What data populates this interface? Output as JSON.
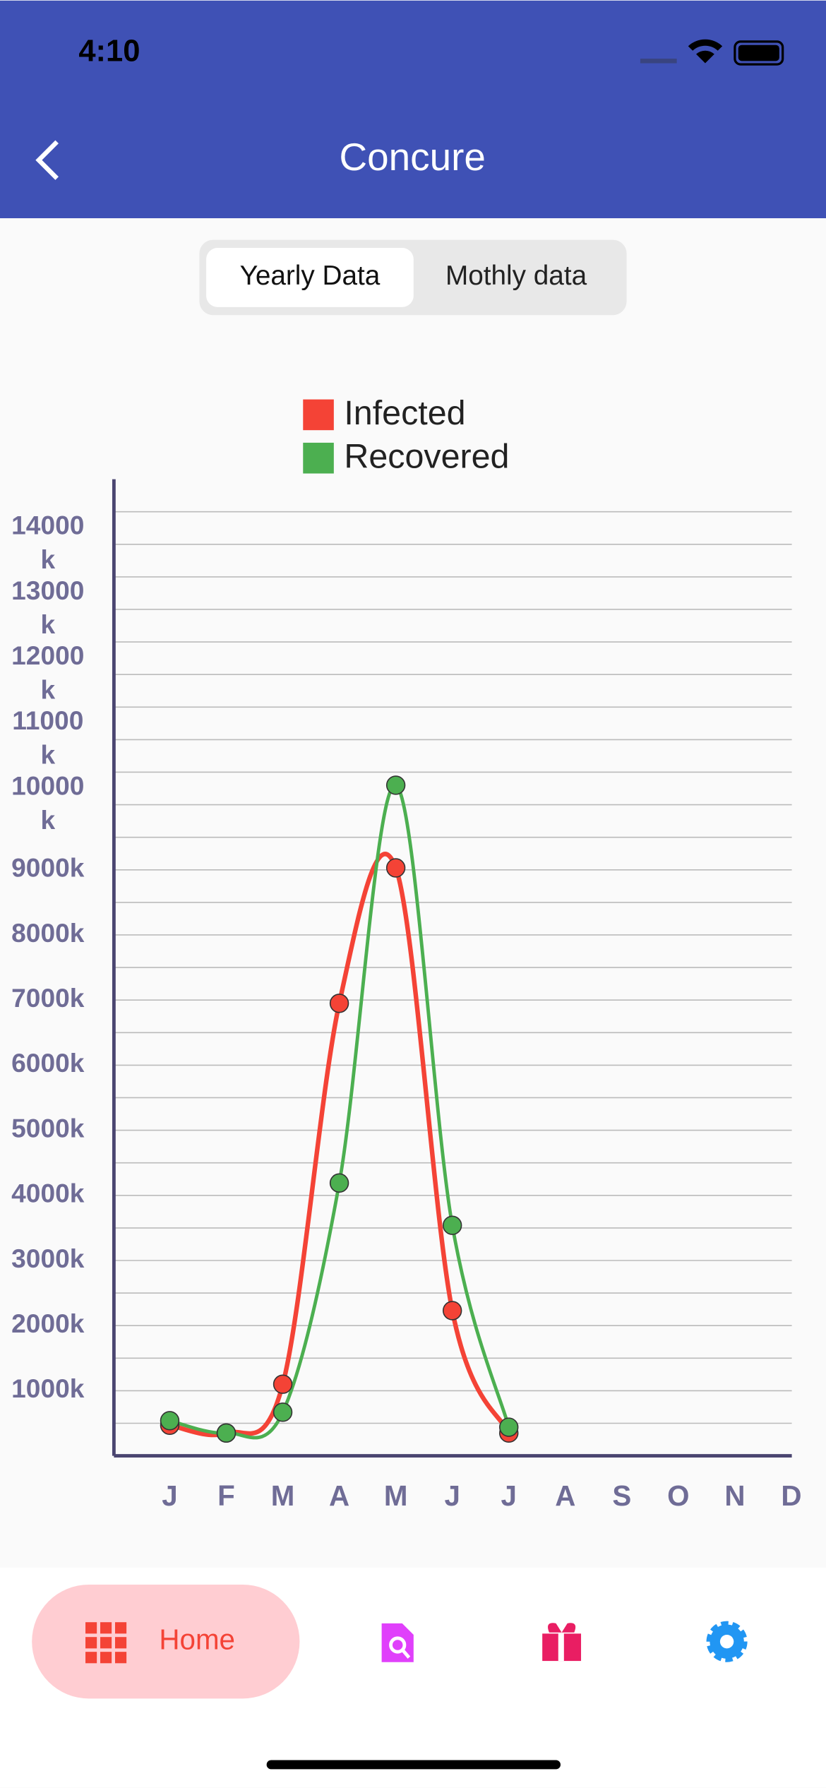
{
  "status_bar": {
    "time": "4:10"
  },
  "header": {
    "title": "Concure"
  },
  "tabs": [
    "Yearly Data",
    "Mothly data"
  ],
  "selected_tab": 0,
  "chart_data": {
    "type": "line",
    "categories": [
      "J",
      "F",
      "M",
      "A",
      "M",
      "J",
      "J",
      "A",
      "S",
      "O",
      "N",
      "D"
    ],
    "series": [
      {
        "name": "Infected",
        "color": "#f44336",
        "values": [
          470,
          350,
          1100,
          6950,
          9030,
          2230,
          350,
          null,
          null,
          null,
          null,
          null
        ]
      },
      {
        "name": "Recovered",
        "color": "#4caf50",
        "values": [
          540,
          350,
          670,
          4190,
          10300,
          3540,
          440,
          null,
          null,
          null,
          null,
          null
        ]
      }
    ],
    "ylim": [
      0,
      15000
    ],
    "yticks": [
      {
        "value": 1000,
        "label": "1000k"
      },
      {
        "value": 2000,
        "label": "2000k"
      },
      {
        "value": 3000,
        "label": "3000k"
      },
      {
        "value": 4000,
        "label": "4000k"
      },
      {
        "value": 5000,
        "label": "5000k"
      },
      {
        "value": 6000,
        "label": "6000k"
      },
      {
        "value": 7000,
        "label": "7000k"
      },
      {
        "value": 8000,
        "label": "8000k"
      },
      {
        "value": 9000,
        "label": "9000k"
      },
      {
        "value": 10000,
        "label": "10000k"
      },
      {
        "value": 11000,
        "label": "11000k"
      },
      {
        "value": 12000,
        "label": "12000k"
      },
      {
        "value": 13000,
        "label": "13000k"
      },
      {
        "value": 14000,
        "label": "14000k"
      }
    ],
    "ygrid": [
      500,
      1000,
      1500,
      2000,
      2500,
      3000,
      3500,
      4000,
      4500,
      5000,
      5500,
      6000,
      6500,
      7000,
      7500,
      8000,
      8500,
      9000,
      9500,
      10000,
      10500,
      11000,
      11500,
      12000,
      12500,
      13000,
      13500,
      14000,
      14500
    ],
    "grid": true,
    "legend": "top"
  },
  "bottom_nav": {
    "items": [
      "Home"
    ],
    "selected": 0
  }
}
